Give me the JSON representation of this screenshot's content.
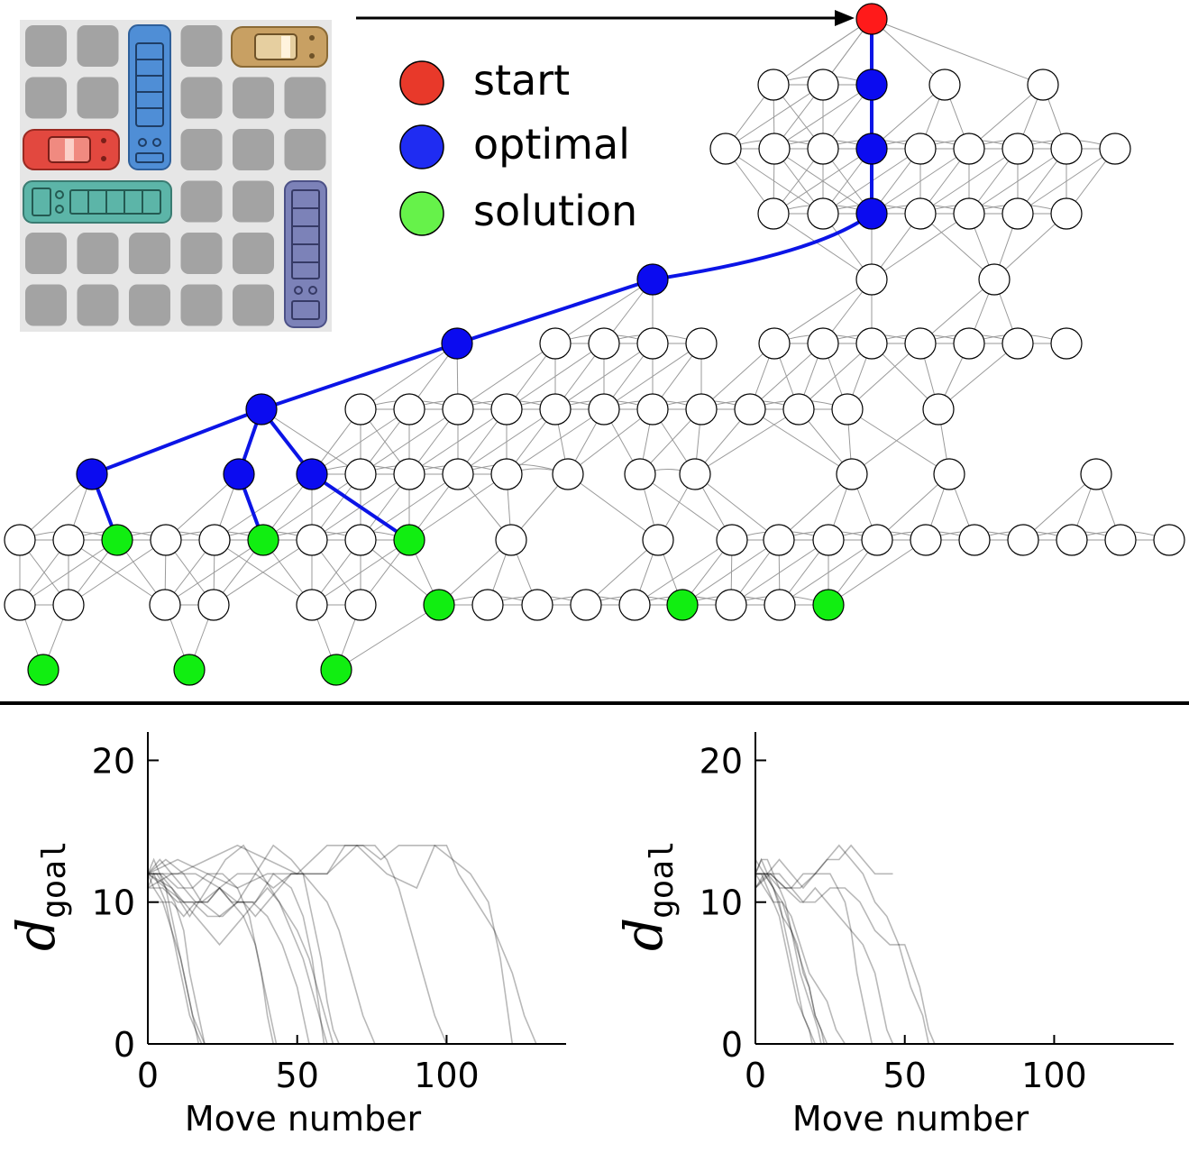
{
  "legend": {
    "items": [
      {
        "key": "start",
        "label": "start",
        "color": "#e8392a"
      },
      {
        "key": "optimal",
        "label": "optimal",
        "color": "#1f2cf2"
      },
      {
        "key": "solution",
        "label": "solution",
        "color": "#66f24a"
      }
    ]
  },
  "colors": {
    "start": "#ff1a1a",
    "optimal": "#0b0bf0",
    "solution": "#11ee11",
    "node": "#ffffff",
    "edge": "#9a9a9a",
    "path": "#0b14e6",
    "board_bg": "#e6e6e6",
    "board_cell": "#a3a3a3",
    "car_red": "#e2483f",
    "car_blue": "#4f8ed6",
    "car_tan": "#c8a063",
    "truck_teal": "#5cb5a8",
    "truck_purple": "#7c82b8"
  },
  "puzzle_board": {
    "rows": 6,
    "cols": 6
  },
  "chart_data": [
    {
      "type": "line",
      "ylabel": "d",
      "ylabel_subscript": "goal",
      "xlabel": "Move number",
      "xlim": [
        0,
        140
      ],
      "ylim": [
        0,
        22
      ],
      "xticks": [
        "0",
        "50",
        "100"
      ],
      "yticks": [
        "0",
        "10",
        "20"
      ],
      "series": [
        {
          "x": [
            0,
            2,
            4,
            6,
            8,
            10,
            12,
            14,
            16,
            18
          ],
          "y": [
            12,
            13,
            12,
            11,
            9,
            7,
            5,
            3,
            1,
            0
          ]
        },
        {
          "x": [
            0,
            3,
            6,
            9,
            12,
            14,
            16,
            18,
            19
          ],
          "y": [
            12,
            12,
            11,
            10,
            8,
            5,
            3,
            1,
            0
          ]
        },
        {
          "x": [
            0,
            2,
            4,
            6,
            8,
            10,
            12,
            14,
            16,
            17
          ],
          "y": [
            11,
            12,
            11,
            10,
            8,
            6,
            4,
            2,
            1,
            0
          ]
        },
        {
          "x": [
            0,
            2,
            5,
            8,
            11,
            13,
            15,
            17,
            19
          ],
          "y": [
            12,
            11,
            10,
            8,
            6,
            4,
            2,
            1,
            0
          ]
        },
        {
          "x": [
            0,
            4,
            8,
            12,
            16,
            20,
            24,
            28,
            32,
            36,
            38,
            40,
            42,
            43
          ],
          "y": [
            12,
            13,
            12,
            11,
            10,
            10,
            11,
            10,
            9,
            7,
            5,
            3,
            1,
            0
          ]
        },
        {
          "x": [
            0,
            5,
            10,
            15,
            20,
            25,
            30,
            34,
            36,
            38,
            40,
            42
          ],
          "y": [
            12,
            12,
            11,
            11,
            12,
            12,
            11,
            9,
            7,
            5,
            2,
            0
          ]
        },
        {
          "x": [
            0,
            6,
            12,
            18,
            24,
            30,
            36,
            42,
            48,
            52,
            55,
            58,
            60,
            62,
            64
          ],
          "y": [
            12,
            13,
            12,
            10,
            9,
            10,
            12,
            14,
            13,
            12,
            9,
            6,
            3,
            1,
            0
          ]
        },
        {
          "x": [
            0,
            8,
            16,
            24,
            30,
            36,
            42,
            48,
            52,
            55,
            57,
            59
          ],
          "y": [
            11,
            12,
            12,
            11,
            10,
            10,
            12,
            11,
            9,
            6,
            3,
            0
          ]
        },
        {
          "x": [
            0,
            10,
            20,
            30,
            40,
            50,
            60,
            70,
            76,
            80,
            84,
            88,
            92,
            96,
            100
          ],
          "y": [
            12,
            12,
            13,
            14,
            13,
            12,
            12,
            14,
            14,
            13,
            11,
            8,
            5,
            2,
            0
          ]
        },
        {
          "x": [
            0,
            10,
            20,
            30,
            40,
            50,
            60,
            70,
            80,
            90,
            96,
            100,
            104,
            110,
            116,
            122,
            126,
            130
          ],
          "y": [
            12,
            13,
            12,
            11,
            12,
            12,
            14,
            14,
            12,
            11,
            14,
            14,
            12,
            10,
            8,
            5,
            2,
            0
          ]
        },
        {
          "x": [
            0,
            8,
            14,
            20,
            26,
            32,
            38,
            44,
            50,
            54,
            58,
            62
          ],
          "y": [
            12,
            11,
            9,
            11,
            13,
            14,
            12,
            10,
            8,
            6,
            3,
            0
          ]
        },
        {
          "x": [
            0,
            6,
            12,
            18,
            24,
            30,
            36,
            42,
            48,
            54,
            60,
            66,
            72,
            78,
            84,
            90,
            96,
            102,
            108,
            114,
            118,
            122
          ],
          "y": [
            12,
            11,
            10,
            10,
            11,
            12,
            12,
            11,
            12,
            12,
            12,
            14,
            14,
            13,
            14,
            14,
            14,
            13,
            12,
            10,
            6,
            0
          ]
        },
        {
          "x": [
            0,
            5,
            10,
            15,
            20,
            25,
            30,
            35,
            40,
            45,
            50,
            52,
            54
          ],
          "y": [
            11,
            11,
            10,
            10,
            9,
            9,
            10,
            10,
            9,
            7,
            4,
            2,
            0
          ]
        },
        {
          "x": [
            0,
            4,
            8,
            12,
            16,
            20,
            24,
            28,
            32,
            36,
            40,
            44,
            48,
            52,
            56,
            60
          ],
          "y": [
            12,
            12,
            11,
            10,
            9,
            8,
            7,
            8,
            9,
            10,
            11,
            10,
            8,
            6,
            3,
            0
          ]
        },
        {
          "x": [
            0,
            4,
            8,
            12,
            16,
            20,
            24,
            28,
            32,
            36,
            40,
            44,
            48,
            52,
            56,
            60,
            64,
            68,
            72,
            76
          ],
          "y": [
            10,
            10,
            10,
            9,
            10,
            10,
            11,
            10,
            10,
            9,
            10,
            11,
            12,
            12,
            11,
            10,
            8,
            5,
            2,
            0
          ]
        }
      ]
    },
    {
      "type": "line",
      "ylabel": "d",
      "ylabel_subscript": "goal",
      "xlabel": "Move number",
      "xlim": [
        0,
        140
      ],
      "ylim": [
        0,
        22
      ],
      "xticks": [
        "0",
        "50",
        "100"
      ],
      "yticks": [
        "0",
        "10",
        "20"
      ],
      "series": [
        {
          "x": [
            0,
            2,
            4,
            6,
            8,
            10,
            12,
            14,
            16,
            18,
            20
          ],
          "y": [
            12,
            13,
            12,
            11,
            10,
            8,
            6,
            4,
            2,
            1,
            0
          ]
        },
        {
          "x": [
            0,
            2,
            4,
            6,
            8,
            10,
            12,
            14,
            16,
            18,
            19
          ],
          "y": [
            12,
            12,
            11,
            10,
            9,
            7,
            5,
            3,
            2,
            1,
            0
          ]
        },
        {
          "x": [
            0,
            3,
            6,
            9,
            12,
            15,
            18,
            21,
            22
          ],
          "y": [
            11,
            12,
            11,
            10,
            8,
            5,
            3,
            1,
            0
          ]
        },
        {
          "x": [
            0,
            2,
            4,
            6,
            8,
            10,
            12,
            14,
            16,
            18,
            20,
            22,
            24
          ],
          "y": [
            12,
            13,
            13,
            12,
            11,
            10,
            8,
            7,
            5,
            4,
            2,
            1,
            0
          ]
        },
        {
          "x": [
            0,
            3,
            6,
            9,
            12,
            15,
            18,
            20,
            22,
            23
          ],
          "y": [
            13,
            12,
            11,
            9,
            8,
            6,
            4,
            2,
            1,
            0
          ]
        },
        {
          "x": [
            0,
            4,
            8,
            12,
            16,
            20,
            24,
            28,
            32,
            36,
            40,
            44,
            46
          ],
          "y": [
            12,
            12,
            13,
            12,
            11,
            12,
            13,
            13,
            14,
            13,
            12,
            12,
            12
          ]
        },
        {
          "x": [
            0,
            5,
            10,
            15,
            20,
            25,
            30,
            32,
            34,
            36,
            38,
            39
          ],
          "y": [
            12,
            12,
            11,
            11,
            12,
            12,
            10,
            8,
            5,
            3,
            1,
            0
          ]
        },
        {
          "x": [
            0,
            4,
            8,
            12,
            16,
            20,
            24,
            28,
            32,
            36,
            40,
            44,
            48,
            52,
            56,
            58
          ],
          "y": [
            12,
            12,
            11,
            11,
            12,
            12,
            13,
            14,
            13,
            12,
            10,
            9,
            7,
            4,
            2,
            0
          ]
        },
        {
          "x": [
            0,
            5,
            10,
            15,
            20,
            25,
            30,
            35,
            40,
            45,
            50,
            55,
            58,
            60
          ],
          "y": [
            11,
            12,
            11,
            10,
            10,
            11,
            11,
            10,
            8,
            7,
            7,
            4,
            1,
            0
          ]
        },
        {
          "x": [
            0,
            3,
            6,
            9,
            12,
            15,
            18,
            21,
            24,
            27,
            30
          ],
          "y": [
            12,
            11,
            10,
            10,
            9,
            7,
            5,
            4,
            3,
            1,
            0
          ]
        },
        {
          "x": [
            0,
            4,
            8,
            12,
            16,
            20,
            24,
            28,
            32,
            36,
            40,
            42,
            44,
            46
          ],
          "y": [
            11,
            12,
            12,
            11,
            10,
            11,
            10,
            9,
            8,
            7,
            5,
            3,
            1,
            0
          ]
        }
      ]
    }
  ]
}
